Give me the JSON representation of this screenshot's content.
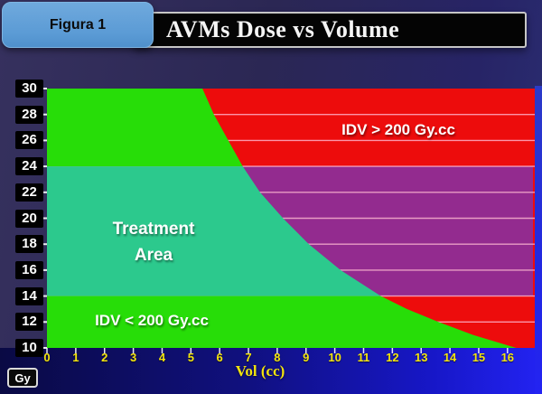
{
  "header": {
    "tab_label": "Figura 1",
    "title": "AVMs Dose vs Volume"
  },
  "colors": {
    "tab_blue": "#5b9bd5",
    "title_bar_bg": "#040404",
    "gridline_pink": "#ffb9d2",
    "tick_white": "#ffffff",
    "axis_label_yellow": "#f2e40e",
    "bottom_band_blue": "#2323f2",
    "page_background": "#2b2754"
  },
  "chart_data": {
    "type": "area",
    "title": "AVMs Dose vs Volume",
    "xlabel": "Vol (cc)",
    "ylabel": "Gy",
    "xlim": [
      0,
      17
    ],
    "ylim": [
      10,
      30
    ],
    "grid": "horizontal gridlines every 2 Gy, visible over red/purple regions",
    "xticks": [
      "0",
      "1",
      "2",
      "3",
      "4",
      "5",
      "6",
      "7",
      "8",
      "9",
      "10",
      "11",
      "12",
      "13",
      "14",
      "15",
      "16"
    ],
    "yticks": [
      "30",
      "28",
      "26",
      "24",
      "22",
      "20",
      "18",
      "16",
      "14",
      "12",
      "10"
    ],
    "ytick_doses": [
      30,
      28,
      26,
      24,
      22,
      20,
      18,
      16,
      14,
      12,
      10
    ],
    "boundary_curve": {
      "label": "IDV = 200 Gy.cc isodose-volume boundary",
      "dose_gy": [
        30,
        28,
        26,
        24,
        22,
        20,
        18,
        16,
        14,
        13,
        12,
        11,
        10
      ],
      "vol_cc": [
        5.4,
        5.8,
        6.3,
        6.8,
        7.4,
        8.2,
        9.1,
        10.2,
        11.6,
        12.5,
        13.6,
        14.8,
        16.3
      ]
    },
    "treatment_dose_band_gy": [
      14,
      24
    ],
    "regions": [
      {
        "id": "idv-below-200",
        "label": "IDV < 200 Gy.cc",
        "color": "#27dd08",
        "extent": "left of boundary curve, dose 10–14 and 24–30 Gy"
      },
      {
        "id": "treatment-area",
        "label": "Treatment Area",
        "color": "#2cc98d",
        "extent": "left of boundary curve, dose 14–24 Gy"
      },
      {
        "id": "idv-above-200",
        "label": "IDV > 200 Gy.cc",
        "color": "#ed0c0c",
        "extent": "right of boundary curve, dose 10–14 and 24–30 Gy"
      },
      {
        "id": "idv-above-200-mid-dose",
        "label": "",
        "color": "#932b8f",
        "extent": "right of boundary curve, dose 14–24 Gy"
      }
    ],
    "labels": {
      "upper_region": "IDV > 200 Gy.cc",
      "treatment_line1": "Treatment",
      "treatment_line2": "Area",
      "lower_region": "IDV < 200 Gy.cc"
    }
  }
}
